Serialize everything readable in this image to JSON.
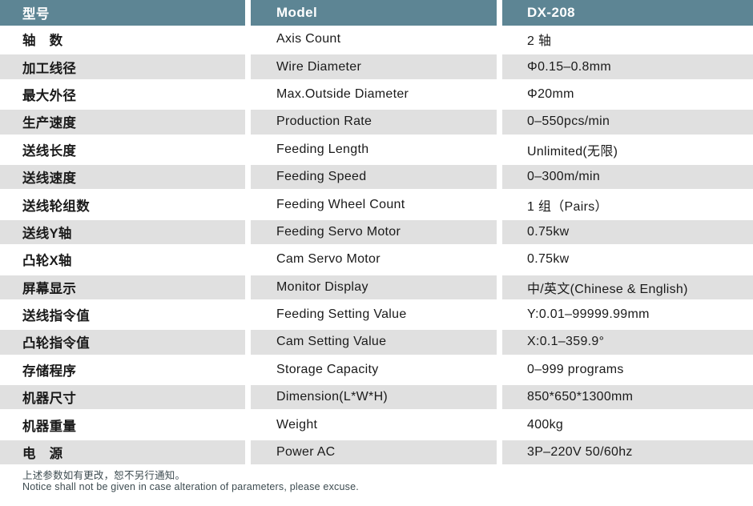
{
  "table": {
    "header": {
      "label_cn": "型号",
      "label_en": "Model",
      "model": "DX-208"
    },
    "rows": [
      {
        "cn": "轴　数",
        "en": "Axis Count",
        "value": "2 轴"
      },
      {
        "cn": "加工线径",
        "en": "Wire Diameter",
        "value": "Φ0.15–0.8mm"
      },
      {
        "cn": "最大外径",
        "en": "Max.Outside Diameter",
        "value": "Φ20mm"
      },
      {
        "cn": "生产速度",
        "en": "Production Rate",
        "value": "0–550pcs/min"
      },
      {
        "cn": "送线长度",
        "en": "Feeding Length",
        "value": "Unlimited(无限)"
      },
      {
        "cn": "送线速度",
        "en": "Feeding Speed",
        "value": "0–300m/min"
      },
      {
        "cn": "送线轮组数",
        "en": "Feeding Wheel Count",
        "value": "1 组（Pairs）"
      },
      {
        "cn": "送线Y轴",
        "en": "Feeding Servo Motor",
        "value": "0.75kw"
      },
      {
        "cn": "凸轮X轴",
        "en": "Cam Servo Motor",
        "value": "0.75kw"
      },
      {
        "cn": "屏幕显示",
        "en": "Monitor Display",
        "value": "中/英文(Chinese & English)"
      },
      {
        "cn": "送线指令值",
        "en": "Feeding Setting Value",
        "value": "Y:0.01–99999.99mm"
      },
      {
        "cn": "凸轮指令值",
        "en": "Cam Setting Value",
        "value": "X:0.1–359.9°"
      },
      {
        "cn": "存储程序",
        "en": "Storage Capacity",
        "value": "0–999 programs"
      },
      {
        "cn": "机器尺寸",
        "en": "Dimension(L*W*H)",
        "value": "850*650*1300mm"
      },
      {
        "cn": "机器重量",
        "en": "Weight",
        "value": "400kg"
      },
      {
        "cn": "电　源",
        "en": "Power AC",
        "value": "3P–220V 50/60hz"
      }
    ]
  },
  "footer": {
    "note_cn": "上述参数如有更改，恕不另行通知。",
    "note_en": "Notice shall not be given in case alteration of parameters, please excuse."
  },
  "colors": {
    "header_bg": "#5d8594",
    "alt_row_bg": "#e0e0e0",
    "text": "#1a1a1a",
    "footer_text": "#3d4b50"
  }
}
